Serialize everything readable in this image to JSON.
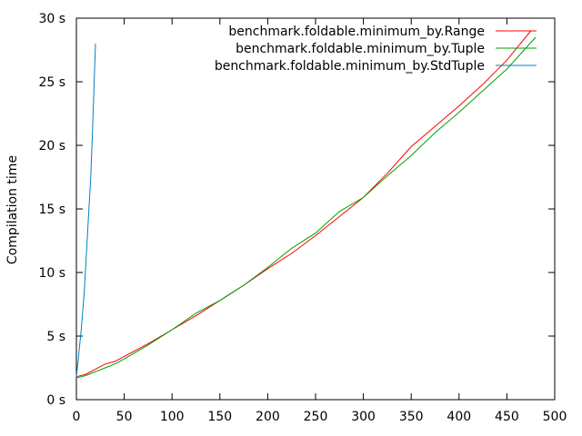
{
  "chart_data": {
    "type": "line",
    "title": "",
    "xlabel": "",
    "ylabel": "Compilation time",
    "xlim": [
      0,
      500
    ],
    "ylim": [
      0,
      30
    ],
    "x_ticks": [
      0,
      50,
      100,
      150,
      200,
      250,
      300,
      350,
      400,
      450,
      500
    ],
    "y_ticks": [
      0,
      5,
      10,
      15,
      20,
      25,
      30
    ],
    "x_tick_labels": [
      "0",
      "50",
      "100",
      "150",
      "200",
      "250",
      "300",
      "350",
      "400",
      "450",
      "500"
    ],
    "y_tick_labels": [
      "0 s",
      "5 s",
      "10 s",
      "15 s",
      "20 s",
      "25 s",
      "30 s"
    ],
    "grid": false,
    "legend_position": "top-right",
    "series": [
      {
        "name": "benchmark.foldable.minimum_by.Range",
        "color": "#ff0000",
        "x": [
          0,
          10,
          20,
          30,
          40,
          50,
          75,
          100,
          125,
          150,
          175,
          200,
          225,
          250,
          275,
          300,
          325,
          350,
          375,
          400,
          425,
          450,
          475
        ],
        "y": [
          1.8,
          2.0,
          2.4,
          2.8,
          3.0,
          3.4,
          4.4,
          5.5,
          6.6,
          7.8,
          9.0,
          10.3,
          11.5,
          12.9,
          14.4,
          15.9,
          17.8,
          19.9,
          21.5,
          23.1,
          24.8,
          26.7,
          29.0
        ]
      },
      {
        "name": "benchmark.foldable.minimum_by.Tuple",
        "color": "#00a000",
        "x": [
          0,
          10,
          20,
          30,
          40,
          50,
          75,
          100,
          125,
          150,
          175,
          200,
          225,
          250,
          275,
          300,
          325,
          350,
          375,
          400,
          425,
          450,
          480
        ],
        "y": [
          1.7,
          1.9,
          2.2,
          2.5,
          2.8,
          3.2,
          4.3,
          5.5,
          6.8,
          7.8,
          9.0,
          10.4,
          11.9,
          13.1,
          14.8,
          15.9,
          17.6,
          19.2,
          21.0,
          22.6,
          24.3,
          26.0,
          28.5
        ]
      },
      {
        "name": "benchmark.foldable.minimum_by.StdTuple",
        "color": "#0080c0",
        "x": [
          0,
          2,
          5,
          8,
          10,
          12,
          15,
          17,
          20
        ],
        "y": [
          1.8,
          3.2,
          5.5,
          8.2,
          10.8,
          13.5,
          17.5,
          21.5,
          28.0
        ]
      }
    ]
  }
}
